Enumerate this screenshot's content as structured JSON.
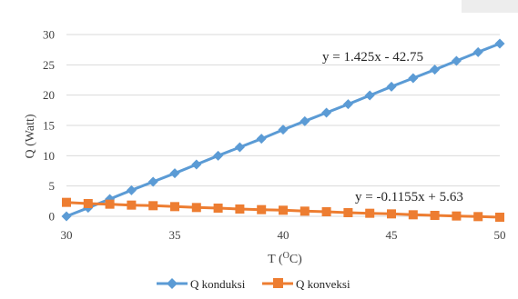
{
  "chart_data": {
    "type": "scatter",
    "title": "",
    "xlabel": "T (",
    "xlabel_sup": "O",
    "xlabel_suffix": "C)",
    "ylabel": "Q (Watt)",
    "xlim": [
      30,
      50
    ],
    "ylim": [
      0,
      30
    ],
    "xticks": [
      "30",
      "35",
      "40",
      "45",
      "50"
    ],
    "yticks": [
      "0",
      "5",
      "10",
      "15",
      "20",
      "25",
      "30"
    ],
    "grid": "horizontal",
    "legend_position": "bottom",
    "series": [
      {
        "name": "Q konduksi",
        "color": "#5B9BD5",
        "marker": "diamond",
        "x": [
          30,
          31,
          32,
          33,
          34,
          35,
          36,
          37,
          38,
          39,
          40,
          41,
          42,
          43,
          44,
          45,
          46,
          47,
          48,
          49,
          50
        ],
        "y": [
          0,
          1.4,
          2.85,
          4.3,
          5.7,
          7.1,
          8.55,
          10.0,
          11.4,
          12.8,
          14.3,
          15.7,
          17.1,
          18.5,
          19.95,
          21.4,
          22.8,
          24.2,
          25.65,
          27.1,
          28.5
        ]
      },
      {
        "name": "Q konveksi",
        "color": "#ED7D31",
        "marker": "square",
        "x": [
          30,
          31,
          32,
          33,
          34,
          35,
          36,
          37,
          38,
          39,
          40,
          41,
          42,
          43,
          44,
          45,
          46,
          47,
          48,
          49,
          50
        ],
        "y": [
          2.3,
          2.1,
          2.0,
          1.85,
          1.75,
          1.6,
          1.45,
          1.35,
          1.2,
          1.1,
          1.0,
          0.85,
          0.75,
          0.6,
          0.5,
          0.4,
          0.25,
          0.15,
          0.05,
          -0.05,
          -0.15
        ]
      }
    ],
    "annotations": [
      {
        "text": "y = 1.425x - 42.75"
      },
      {
        "text": "y = -0.1155x + 5.63"
      }
    ]
  }
}
